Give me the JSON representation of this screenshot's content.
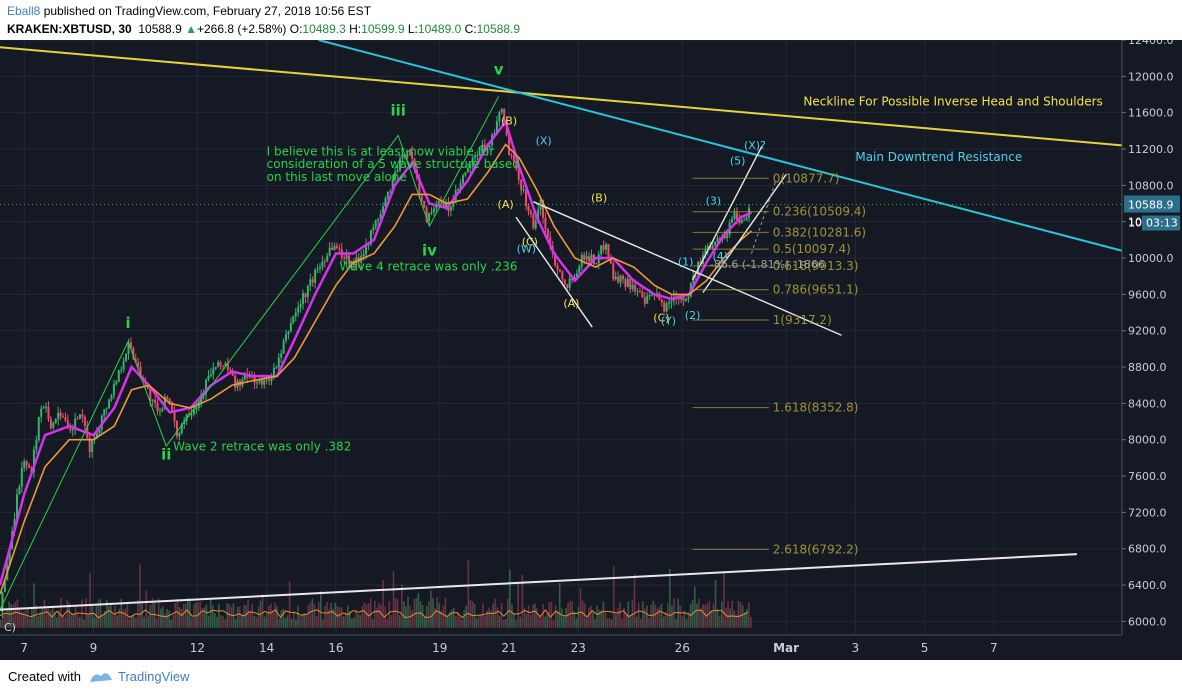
{
  "header": {
    "author": "Eball8",
    "published_text": "published on TradingView.com, February 27, 2018 10:56 EST",
    "symbol": "KRAKEN:XBTUSD, 30",
    "last": "10588.9",
    "change_arrow": "▲",
    "change": "+266.8 (+2.58%)",
    "o_label": "O:",
    "o_value": "10489.3",
    "h_label": "H:",
    "h_value": "10599.9",
    "l_label": "L:",
    "l_value": "10489.0",
    "c_label": "C:",
    "c_value": "10588.9"
  },
  "footer": {
    "created_with": "Created with",
    "brand": "TradingView"
  },
  "colors": {
    "background": "#151924",
    "grid": "#232838",
    "axis_text": "#c8ccd6",
    "price_line": "#ffb000",
    "neckline": "#e6d23a",
    "downtrend": "#26c6da",
    "support": "#e8e8e8",
    "channel": "#e8e8e8",
    "wave_green": "#27d34a",
    "wave_yellow": "#f4e04d",
    "wave_cyan": "#4fd0ea",
    "fib": "#b5a83a",
    "ema_fast": "#d830f0",
    "ema_slow": "#f09838",
    "candle_up": "#35b56a",
    "candle_down": "#f04c6a",
    "last_price_tag": "#2c6f8a"
  },
  "chart_data": {
    "type": "candlestick",
    "title": "",
    "x_ticks": [
      "7",
      "9",
      "12",
      "14",
      "16",
      "19",
      "21",
      "23",
      "26",
      "Mar",
      "3",
      "5",
      "7"
    ],
    "y_ticks": [
      12400,
      12000,
      11600,
      11200,
      10800,
      10400,
      10000,
      9600,
      9200,
      8800,
      8400,
      8000,
      7600,
      7200,
      6800,
      6400,
      6000
    ],
    "y_tick_labels": [
      "12400.0",
      "12000.0",
      "11600.0",
      "11200.0",
      "10800.0",
      "10400.0",
      "10000.0",
      "9600.0",
      "9200.0",
      "8800.0",
      "8400.0",
      "8000.0",
      "7600.0",
      "7200.0",
      "6800.0",
      "6400.0",
      "6000.0"
    ],
    "ylim": [
      5850,
      12400
    ],
    "xlim": [
      6.3,
      38.7
    ],
    "x_tick_positions": [
      7,
      9,
      12,
      14,
      16,
      19,
      21,
      23,
      26,
      29,
      31,
      33,
      35
    ],
    "last_price": 10588.9,
    "last_price_label": "10588.9",
    "countdown_label": "03:13",
    "partial_price_label": "10",
    "price_path": [
      [
        6.3,
        6100
      ],
      [
        6.5,
        6600
      ],
      [
        6.8,
        7400
      ],
      [
        7.0,
        7800
      ],
      [
        7.2,
        7600
      ],
      [
        7.4,
        8200
      ],
      [
        7.6,
        8450
      ],
      [
        7.8,
        8100
      ],
      [
        8.0,
        8350
      ],
      [
        8.3,
        8050
      ],
      [
        8.6,
        8300
      ],
      [
        8.9,
        7900
      ],
      [
        9.2,
        8200
      ],
      [
        9.6,
        8600
      ],
      [
        10.0,
        9050
      ],
      [
        10.3,
        8800
      ],
      [
        10.6,
        8500
      ],
      [
        10.9,
        8250
      ],
      [
        11.1,
        8550
      ],
      [
        11.4,
        8050
      ],
      [
        11.7,
        8300
      ],
      [
        12.0,
        8400
      ],
      [
        12.4,
        8750
      ],
      [
        12.8,
        8850
      ],
      [
        13.1,
        8600
      ],
      [
        13.5,
        8700
      ],
      [
        13.9,
        8600
      ],
      [
        14.3,
        8800
      ],
      [
        14.7,
        9300
      ],
      [
        15.1,
        9600
      ],
      [
        15.5,
        9900
      ],
      [
        15.9,
        10150
      ],
      [
        16.3,
        10000
      ],
      [
        16.6,
        9950
      ],
      [
        17.0,
        10250
      ],
      [
        17.4,
        10600
      ],
      [
        17.8,
        11000
      ],
      [
        18.1,
        11250
      ],
      [
        18.3,
        10900
      ],
      [
        18.6,
        10450
      ],
      [
        18.9,
        10600
      ],
      [
        19.3,
        10550
      ],
      [
        19.7,
        10900
      ],
      [
        20.1,
        11150
      ],
      [
        20.5,
        11300
      ],
      [
        20.8,
        11650
      ],
      [
        21.0,
        11150
      ],
      [
        21.2,
        10950
      ],
      [
        21.4,
        10750
      ],
      [
        21.7,
        10350
      ],
      [
        21.9,
        10600
      ],
      [
        22.2,
        10100
      ],
      [
        22.4,
        9900
      ],
      [
        22.7,
        9700
      ],
      [
        22.9,
        9850
      ],
      [
        23.2,
        10050
      ],
      [
        23.5,
        9950
      ],
      [
        23.8,
        10200
      ],
      [
        24.0,
        9800
      ],
      [
        24.3,
        9750
      ],
      [
        24.6,
        9700
      ],
      [
        24.9,
        9500
      ],
      [
        25.2,
        9600
      ],
      [
        25.5,
        9450
      ],
      [
        25.8,
        9600
      ],
      [
        26.1,
        9550
      ],
      [
        26.4,
        9850
      ],
      [
        26.7,
        10100
      ],
      [
        27.0,
        10250
      ],
      [
        27.2,
        10200
      ],
      [
        27.5,
        10500
      ],
      [
        27.7,
        10400
      ],
      [
        28.0,
        10589
      ]
    ],
    "moving_averages": [
      {
        "name": "",
        "color_key": "ema_fast",
        "values": [
          [
            6.3,
            6400
          ],
          [
            7.0,
            7400
          ],
          [
            7.6,
            8050
          ],
          [
            8.3,
            8150
          ],
          [
            9.0,
            8050
          ],
          [
            9.6,
            8350
          ],
          [
            10.1,
            8800
          ],
          [
            10.6,
            8600
          ],
          [
            11.2,
            8300
          ],
          [
            11.8,
            8350
          ],
          [
            12.4,
            8600
          ],
          [
            13.0,
            8750
          ],
          [
            13.6,
            8700
          ],
          [
            14.3,
            8700
          ],
          [
            14.8,
            9100
          ],
          [
            15.4,
            9600
          ],
          [
            16.0,
            10050
          ],
          [
            16.5,
            10050
          ],
          [
            17.1,
            10200
          ],
          [
            17.7,
            10800
          ],
          [
            18.2,
            11050
          ],
          [
            18.7,
            10600
          ],
          [
            19.2,
            10550
          ],
          [
            19.8,
            10850
          ],
          [
            20.4,
            11250
          ],
          [
            20.9,
            11500
          ],
          [
            21.3,
            11000
          ],
          [
            21.8,
            10450
          ],
          [
            22.3,
            10050
          ],
          [
            22.9,
            9750
          ],
          [
            23.5,
            10000
          ],
          [
            24.0,
            10000
          ],
          [
            24.6,
            9750
          ],
          [
            25.2,
            9600
          ],
          [
            25.7,
            9550
          ],
          [
            26.2,
            9600
          ],
          [
            26.7,
            9950
          ],
          [
            27.2,
            10250
          ],
          [
            27.7,
            10450
          ],
          [
            28.0,
            10500
          ]
        ]
      },
      {
        "name": "",
        "color_key": "ema_slow",
        "values": [
          [
            6.3,
            6300
          ],
          [
            7.0,
            7100
          ],
          [
            7.6,
            7700
          ],
          [
            8.3,
            8000
          ],
          [
            9.0,
            8000
          ],
          [
            9.6,
            8150
          ],
          [
            10.1,
            8550
          ],
          [
            10.6,
            8600
          ],
          [
            11.2,
            8400
          ],
          [
            11.8,
            8350
          ],
          [
            12.4,
            8450
          ],
          [
            13.0,
            8600
          ],
          [
            13.6,
            8650
          ],
          [
            14.3,
            8700
          ],
          [
            14.8,
            8900
          ],
          [
            15.4,
            9300
          ],
          [
            16.0,
            9700
          ],
          [
            16.5,
            9950
          ],
          [
            17.1,
            10050
          ],
          [
            17.7,
            10350
          ],
          [
            18.2,
            10700
          ],
          [
            18.7,
            10700
          ],
          [
            19.2,
            10600
          ],
          [
            19.8,
            10650
          ],
          [
            20.4,
            10950
          ],
          [
            20.9,
            11250
          ],
          [
            21.3,
            11100
          ],
          [
            21.8,
            10750
          ],
          [
            22.3,
            10350
          ],
          [
            22.9,
            10000
          ],
          [
            23.5,
            9900
          ],
          [
            24.0,
            10000
          ],
          [
            24.6,
            9900
          ],
          [
            25.2,
            9700
          ],
          [
            25.7,
            9600
          ],
          [
            26.2,
            9600
          ],
          [
            26.7,
            9750
          ],
          [
            27.2,
            10000
          ],
          [
            27.7,
            10200
          ],
          [
            28.0,
            10300
          ]
        ]
      }
    ],
    "trend_lines": [
      {
        "name": "neckline",
        "color_key": "neckline",
        "points": [
          [
            6.3,
            12320
          ],
          [
            38.7,
            11240
          ]
        ]
      },
      {
        "name": "downtrend",
        "color_key": "downtrend",
        "points": [
          [
            15.5,
            12400
          ],
          [
            38.7,
            10080
          ]
        ]
      },
      {
        "name": "support",
        "color_key": "support",
        "points": [
          [
            6.3,
            6130
          ],
          [
            37.4,
            6740
          ]
        ]
      },
      {
        "name": "channel-upper",
        "color_key": "channel",
        "points": [
          [
            21.7,
            10620
          ],
          [
            30.6,
            9150
          ]
        ]
      },
      {
        "name": "channel-lower",
        "color_key": "channel",
        "points": [
          [
            21.2,
            10450
          ],
          [
            23.4,
            9240
          ]
        ]
      },
      {
        "name": "rising-upper",
        "color_key": "channel",
        "points": [
          [
            26.3,
            9760
          ],
          [
            28.3,
            11230
          ]
        ]
      },
      {
        "name": "rising-lower",
        "color_key": "channel",
        "points": [
          [
            26.6,
            9620
          ],
          [
            29.0,
            10920
          ]
        ]
      }
    ],
    "wave_counts": [
      {
        "label": "i",
        "x": 10.0,
        "price": 9230,
        "color_key": "wave_green"
      },
      {
        "label": "ii",
        "x": 11.1,
        "price": 7780,
        "color_key": "wave_green"
      },
      {
        "label": "iii",
        "x": 17.8,
        "price": 11570,
        "color_key": "wave_green"
      },
      {
        "label": "iv",
        "x": 18.7,
        "price": 10030,
        "color_key": "wave_green"
      },
      {
        "label": "v",
        "x": 20.7,
        "price": 12020,
        "color_key": "wave_green"
      },
      {
        "label": "(B)",
        "x": 21.0,
        "price": 11470,
        "color_key": "wave_yellow"
      },
      {
        "label": "(A)",
        "x": 20.9,
        "price": 10550,
        "color_key": "wave_yellow"
      },
      {
        "label": "(C)",
        "x": 21.6,
        "price": 10140,
        "color_key": "wave_yellow"
      },
      {
        "label": "(W)",
        "x": 21.5,
        "price": 10060,
        "color_key": "wave_cyan"
      },
      {
        "label": "(X)",
        "x": 22.0,
        "price": 11250,
        "color_key": "wave_cyan"
      },
      {
        "label": "(A)",
        "x": 22.8,
        "price": 9460,
        "color_key": "wave_yellow"
      },
      {
        "label": "(B)",
        "x": 23.6,
        "price": 10620,
        "color_key": "wave_yellow"
      },
      {
        "label": "(C)",
        "x": 25.4,
        "price": 9300,
        "color_key": "wave_yellow"
      },
      {
        "label": "(Y)",
        "x": 25.6,
        "price": 9270,
        "color_key": "wave_cyan"
      },
      {
        "label": "(1)",
        "x": 26.1,
        "price": 9920,
        "color_key": "wave_cyan"
      },
      {
        "label": "(2)",
        "x": 26.3,
        "price": 9330,
        "color_key": "wave_cyan"
      },
      {
        "label": "(3)",
        "x": 26.9,
        "price": 10590,
        "color_key": "wave_cyan"
      },
      {
        "label": "(4)",
        "x": 27.1,
        "price": 9980,
        "color_key": "wave_cyan"
      },
      {
        "label": "(5)",
        "x": 27.6,
        "price": 11030,
        "color_key": "wave_cyan"
      },
      {
        "label": "(X)?",
        "x": 28.1,
        "price": 11200,
        "color_key": "wave_cyan"
      }
    ],
    "wave_path": [
      [
        6.3,
        6130
      ],
      [
        10.0,
        9080
      ],
      [
        11.1,
        7930
      ],
      [
        17.8,
        11350
      ],
      [
        18.7,
        10350
      ],
      [
        20.7,
        11780
      ]
    ],
    "fib_levels": [
      {
        "label": "0(10877.7)",
        "price": 10877.7
      },
      {
        "label": "0.236(10509.4)",
        "price": 10509.4
      },
      {
        "label": "0.382(10281.6)",
        "price": 10281.6
      },
      {
        "label": "0.5(10097.4)",
        "price": 10097.4
      },
      {
        "label": "0.618(9913.3)",
        "price": 9913.3
      },
      {
        "label": "0.786(9651.1)",
        "price": 9651.1
      },
      {
        "label": "1(9317.2)",
        "price": 9317.2
      },
      {
        "label": "1.618(8352.8)",
        "price": 8352.8
      },
      {
        "label": "2.618(6792.2)",
        "price": 6792.2
      }
    ],
    "fib_x_range": [
      26.3,
      28.5
    ],
    "projection_label": "-86.6 (-1.81%) -1866",
    "annotations": [
      {
        "text": "I believe this is at least now viable for",
        "x": 14.0,
        "price": 11130,
        "color_key": "wave_green"
      },
      {
        "text": "consideration of a 5 wave structure based",
        "x": 14.0,
        "price": 10990,
        "color_key": "wave_green"
      },
      {
        "text": "on this last move alone",
        "x": 14.0,
        "price": 10850,
        "color_key": "wave_green"
      },
      {
        "text": "Wave 4 retrace was only .236",
        "x": 16.1,
        "price": 9860,
        "color_key": "wave_green"
      },
      {
        "text": "Wave 2 retrace was only .382",
        "x": 11.3,
        "price": 7880,
        "color_key": "wave_green"
      },
      {
        "text": "Neckline For Possible Inverse Head and Shoulders",
        "x": 29.5,
        "price": 11680,
        "color_key": "wave_yellow"
      },
      {
        "text": "Main Downtrend Resistance",
        "x": 31.0,
        "price": 11070,
        "color_key": "wave_cyan"
      }
    ],
    "volume_baseline_price": 5930,
    "volume_max_price": 6900,
    "corner_label": "C)"
  }
}
